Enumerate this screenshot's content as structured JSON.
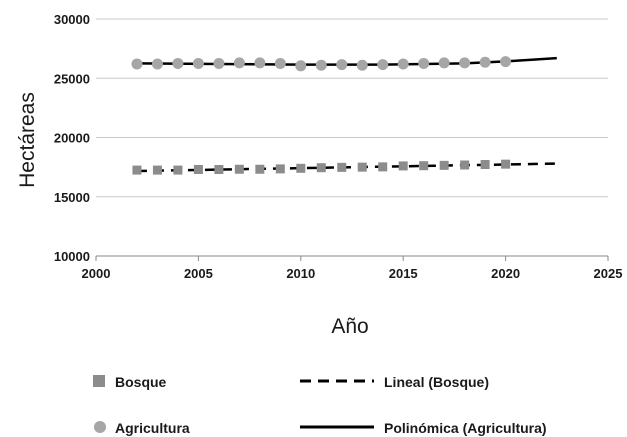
{
  "chart_data": {
    "type": "scatter",
    "xlabel": "Año",
    "ylabel": "Hectáreas",
    "xlim": [
      2000,
      2025
    ],
    "ylim": [
      10000,
      30000
    ],
    "x_ticks": [
      2000,
      2005,
      2010,
      2015,
      2020,
      2025
    ],
    "y_ticks": [
      10000,
      15000,
      20000,
      25000,
      30000
    ],
    "grid": "horizontal",
    "legend_position": "bottom",
    "series": [
      {
        "name": "Bosque",
        "marker": "square",
        "color": "#8c8c8c",
        "x": [
          2002,
          2003,
          2004,
          2005,
          2006,
          2007,
          2008,
          2009,
          2010,
          2011,
          2012,
          2013,
          2014,
          2015,
          2016,
          2017,
          2018,
          2019,
          2020
        ],
        "y": [
          17250,
          17250,
          17250,
          17300,
          17300,
          17320,
          17320,
          17350,
          17400,
          17450,
          17480,
          17500,
          17520,
          17600,
          17620,
          17650,
          17680,
          17720,
          17750
        ]
      },
      {
        "name": "Agricultura",
        "marker": "circle",
        "color": "#a6a6a6",
        "x": [
          2002,
          2003,
          2004,
          2005,
          2006,
          2007,
          2008,
          2009,
          2010,
          2011,
          2012,
          2013,
          2014,
          2015,
          2016,
          2017,
          2018,
          2019,
          2020
        ],
        "y": [
          26200,
          26200,
          26250,
          26250,
          26250,
          26300,
          26300,
          26250,
          26050,
          26100,
          26150,
          26100,
          26150,
          26200,
          26250,
          26300,
          26300,
          26350,
          26400
        ]
      }
    ],
    "trendlines": [
      {
        "name": "Lineal (Bosque)",
        "style": "dashed",
        "color": "#000000",
        "x_range": [
          2002,
          2022.5
        ],
        "y_range": [
          17170,
          17800
        ]
      },
      {
        "name": "Polinómica (Agricultura)",
        "style": "solid",
        "color": "#000000",
        "x": [
          2002,
          2006,
          2010,
          2014,
          2018,
          2020,
          2022.5
        ],
        "y": [
          26250,
          26200,
          26150,
          26150,
          26250,
          26420,
          26700
        ]
      }
    ],
    "legend": [
      "Bosque",
      "Lineal (Bosque)",
      "Agricultura",
      "Polinómica (Agricultura)"
    ]
  }
}
